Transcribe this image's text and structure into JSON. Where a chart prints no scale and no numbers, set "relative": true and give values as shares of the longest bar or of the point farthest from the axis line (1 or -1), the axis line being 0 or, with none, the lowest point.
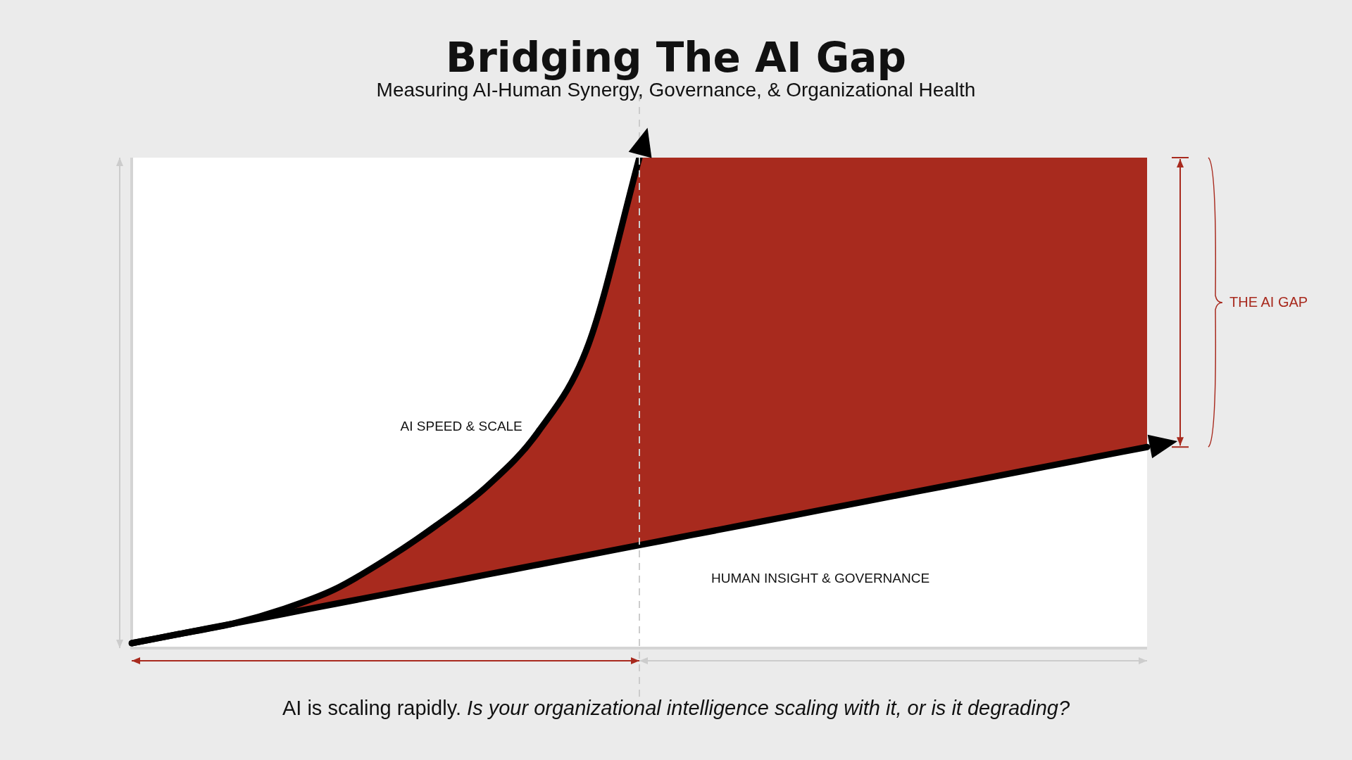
{
  "chart_data": {
    "type": "line",
    "title": "Bridging The AI Gap",
    "subtitle": "Measuring AI-Human Synergy, Governance, & Organizational Health",
    "categories": [
      null,
      null,
      null,
      null,
      null,
      null,
      null,
      null,
      null,
      null,
      null,
      null,
      null,
      null,
      null,
      null,
      null,
      null,
      null,
      null,
      null
    ],
    "relative": true,
    "grid": false,
    "legend": false,
    "marker": "none",
    "line_style": "solid",
    "series": [
      {
        "name": "AI SPEED & SCALE",
        "type": "area",
        "color": "#000000",
        "values": [
          0.01,
          0.03,
          0.05,
          0.08,
          0.12,
          0.18,
          0.25,
          0.33,
          0.44,
          0.62,
          1,
          null,
          null,
          null,
          null,
          null,
          null,
          null,
          null,
          null,
          null
        ]
      },
      {
        "name": "HUMAN INSIGHT & GOVERNANCE",
        "color": "#000000",
        "values": [
          0.01,
          0.03,
          0.05,
          0.07,
          0.09,
          0.11,
          0.13,
          0.15,
          0.17,
          0.19,
          0.21,
          0.23,
          0.25,
          0.27,
          0.29,
          0.31,
          0.33,
          0.35,
          0.37,
          0.39,
          0.41
        ]
      },
      {
        "type": "area",
        "color": "#a82a1e",
        "line_style": "none",
        "values": [
          null,
          null,
          null,
          null,
          null,
          null,
          null,
          null,
          null,
          null,
          1,
          1,
          1,
          1,
          1,
          1,
          1,
          1,
          1,
          1,
          1
        ]
      }
    ],
    "ref_lines": [
      {
        "axis": "x",
        "line_style": "dashed",
        "color": "#cccccc"
      }
    ],
    "annotations": [
      "THE AI GAP",
      "AI is scaling rapidly.",
      "Is your organizational intelligence scaling with it, or is it degrading?"
    ]
  }
}
